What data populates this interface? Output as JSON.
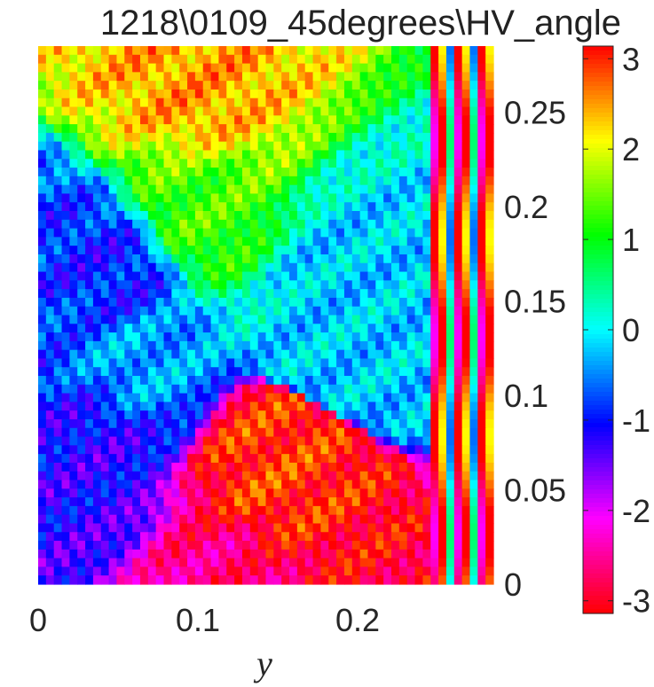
{
  "title": "1218\\0109_45degrees\\HV_angle",
  "chart_data": {
    "type": "heatmap",
    "title": "1218\\0109_45degrees\\HV_angle",
    "xlabel": "y",
    "ylabel": "",
    "xlim": [
      0,
      0.285
    ],
    "ylim": [
      0,
      0.285
    ],
    "x_ticks": [
      "0",
      "0.1",
      "0.2"
    ],
    "y_ticks": [
      "0",
      "0.05",
      "0.1",
      "0.15",
      "0.2",
      "0.25"
    ],
    "y_axis_side": "right",
    "colorbar": {
      "colormap": "hsv",
      "range": [
        -3.14,
        3.14
      ],
      "ticks": [
        "3",
        "2",
        "1",
        "0",
        "-1",
        "-2",
        "-3"
      ],
      "tick_values": [
        3,
        2,
        1,
        0,
        -1,
        -2,
        -3
      ]
    },
    "regions": [
      {
        "x": 0.06,
        "y": 0.12,
        "value": -0.3
      },
      {
        "x": 0.05,
        "y": 0.16,
        "value": -1.0
      },
      {
        "x": 0.04,
        "y": 0.07,
        "value": -1.2
      },
      {
        "x": 0.1,
        "y": 0.2,
        "value": 1.3
      },
      {
        "x": 0.19,
        "y": 0.15,
        "value": -0.2
      },
      {
        "x": 0.14,
        "y": 0.05,
        "value": 2.9
      },
      {
        "x": 0.12,
        "y": 0.01,
        "value": -2.6
      },
      {
        "x": 0.1,
        "y": 0.26,
        "value": 2.5
      }
    ]
  }
}
